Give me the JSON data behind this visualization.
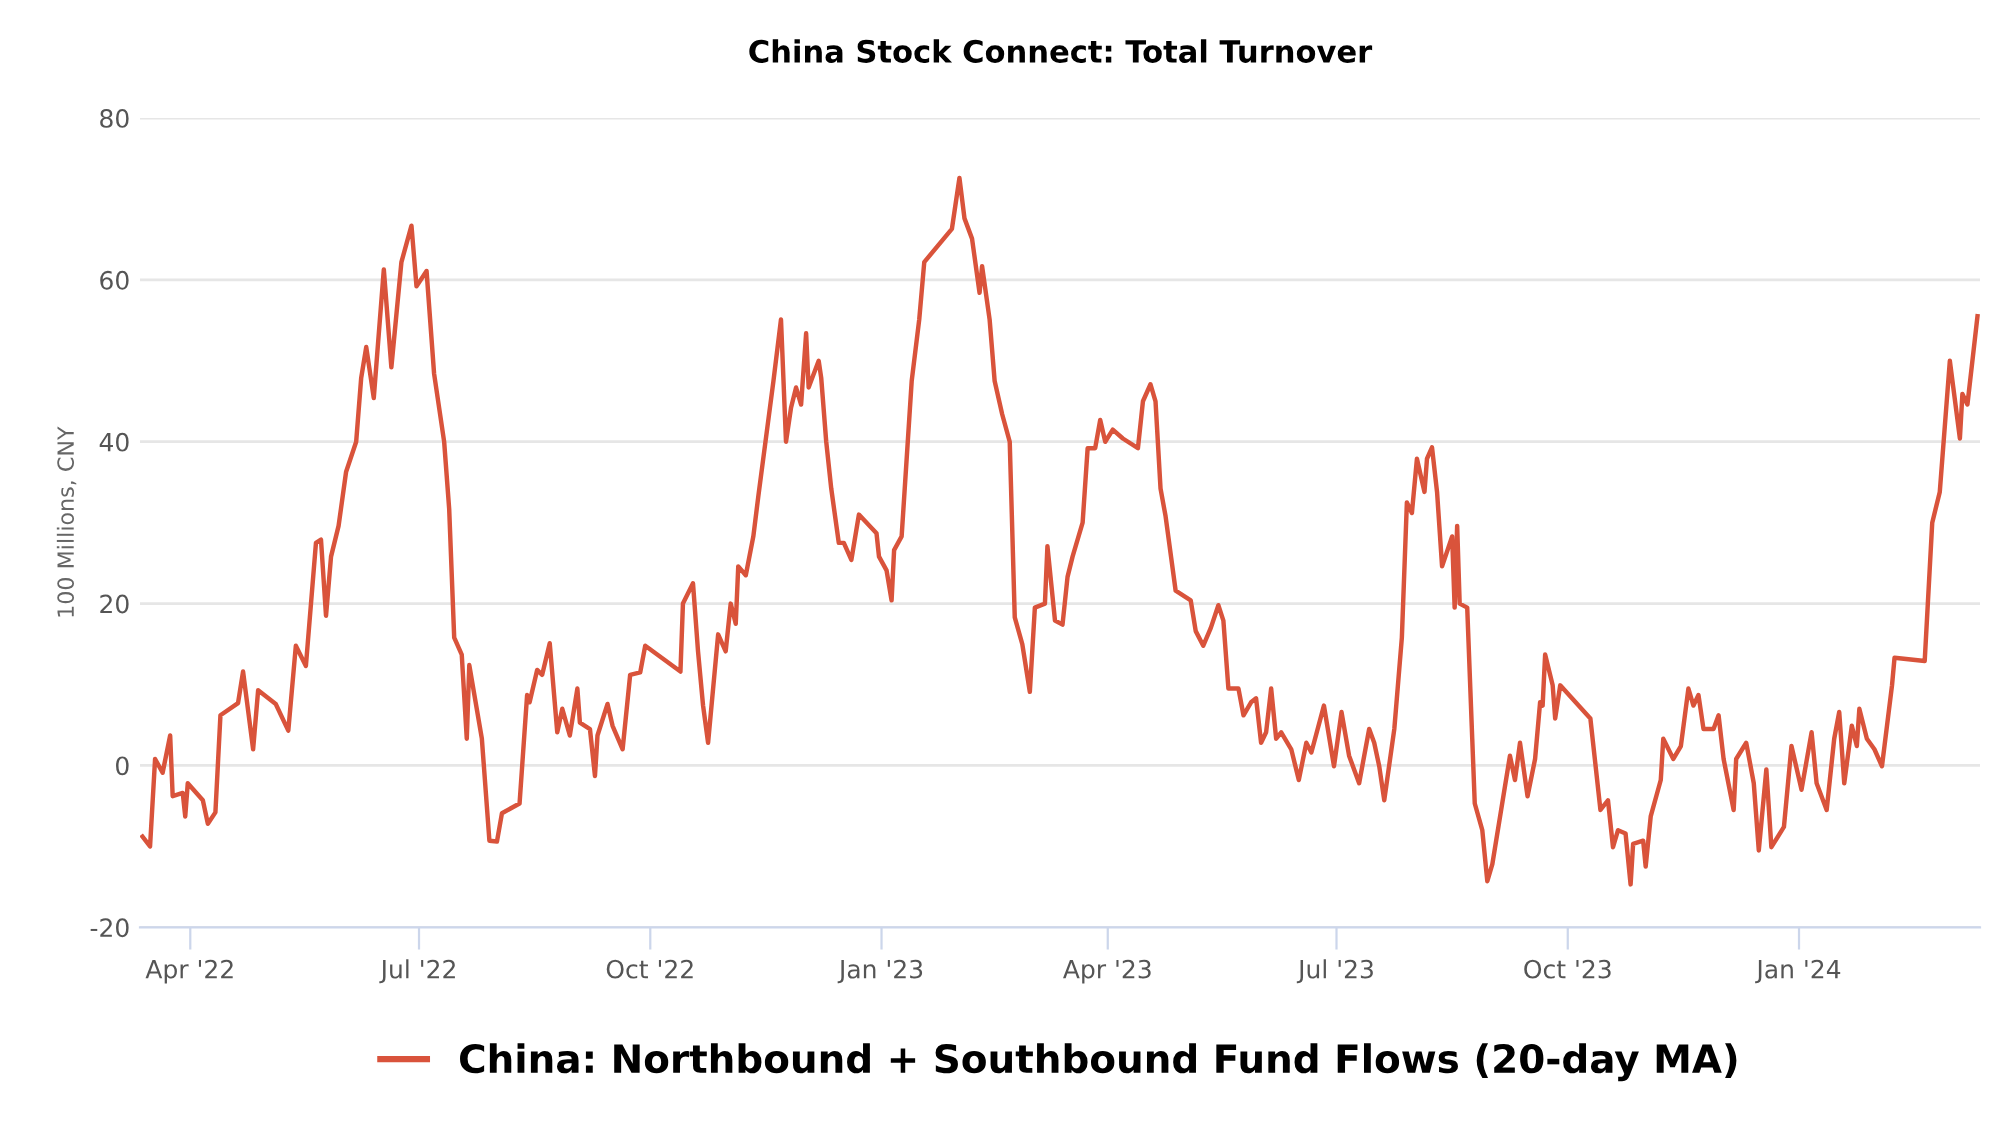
{
  "chart_data": {
    "type": "line",
    "title": "China Stock Connect: Total Turnover",
    "ylabel": "100 Millions, CNY",
    "xlim": [
      "2022-03-12",
      "2024-03-13"
    ],
    "ylim": [
      -20,
      80
    ],
    "yticks": [
      -20,
      0,
      20,
      40,
      60,
      80
    ],
    "xticks": [
      {
        "value": "2022-04-01",
        "label": "Apr '22"
      },
      {
        "value": "2022-07-01",
        "label": "Jul '22"
      },
      {
        "value": "2022-10-01",
        "label": "Oct '22"
      },
      {
        "value": "2023-01-01",
        "label": "Jan '23"
      },
      {
        "value": "2023-04-01",
        "label": "Apr '23"
      },
      {
        "value": "2023-07-01",
        "label": "Jul '23"
      },
      {
        "value": "2023-10-01",
        "label": "Oct '23"
      },
      {
        "value": "2024-01-01",
        "label": "Jan '24"
      }
    ],
    "grid": "y",
    "legend": "bottom",
    "marker": "none",
    "line_style": "solid",
    "series": [
      {
        "name": "China: Northbound + Southbound Fund Flows (20-day MA)",
        "color": "#d9533b",
        "x": [
          "2022-03-13",
          "2022-03-16",
          "2022-03-18",
          "2022-03-21",
          "2022-03-24",
          "2022-03-25",
          "2022-03-29",
          "2022-03-30",
          "2022-03-31",
          "2022-04-06",
          "2022-04-08",
          "2022-04-11",
          "2022-04-13",
          "2022-04-20",
          "2022-04-22",
          "2022-04-26",
          "2022-04-28",
          "2022-05-05",
          "2022-05-10",
          "2022-05-13",
          "2022-05-17",
          "2022-05-21",
          "2022-05-23",
          "2022-05-25",
          "2022-05-27",
          "2022-05-30",
          "2022-06-02",
          "2022-06-06",
          "2022-06-08",
          "2022-06-10",
          "2022-06-13",
          "2022-06-17",
          "2022-06-20",
          "2022-06-24",
          "2022-06-28",
          "2022-06-30",
          "2022-07-04",
          "2022-07-07",
          "2022-07-11",
          "2022-07-13",
          "2022-07-15",
          "2022-07-18",
          "2022-07-20",
          "2022-07-21",
          "2022-07-26",
          "2022-07-29",
          "2022-08-01",
          "2022-08-03",
          "2022-08-10",
          "2022-08-13",
          "2022-08-14",
          "2022-08-17",
          "2022-08-19",
          "2022-08-22",
          "2022-08-25",
          "2022-08-27",
          "2022-08-30",
          "2022-09-02",
          "2022-09-03",
          "2022-09-07",
          "2022-09-09",
          "2022-09-10",
          "2022-09-14",
          "2022-09-16",
          "2022-09-20",
          "2022-09-23",
          "2022-09-27",
          "2022-09-29",
          "2022-10-13",
          "2022-10-14",
          "2022-10-18",
          "2022-10-20",
          "2022-10-22",
          "2022-10-24",
          "2022-10-28",
          "2022-10-31",
          "2022-11-02",
          "2022-11-04",
          "2022-11-05",
          "2022-11-08",
          "2022-11-11",
          "2022-11-13",
          "2022-11-19",
          "2022-11-22",
          "2022-11-24",
          "2022-11-26",
          "2022-11-28",
          "2022-11-30",
          "2022-12-02",
          "2022-12-03",
          "2022-12-07",
          "2022-12-08",
          "2022-12-10",
          "2022-12-12",
          "2022-12-15",
          "2022-12-17",
          "2022-12-20",
          "2022-12-23",
          "2022-12-30",
          "2022-12-31",
          "2023-01-03",
          "2023-01-05",
          "2023-01-06",
          "2023-01-09",
          "2023-01-13",
          "2023-01-16",
          "2023-01-18",
          "2023-01-29",
          "2023-02-01",
          "2023-02-03",
          "2023-02-06",
          "2023-02-09",
          "2023-02-10",
          "2023-02-13",
          "2023-02-15",
          "2023-02-18",
          "2023-02-21",
          "2023-02-23",
          "2023-02-26",
          "2023-03-01",
          "2023-03-03",
          "2023-03-07",
          "2023-03-08",
          "2023-03-11",
          "2023-03-14",
          "2023-03-16",
          "2023-03-18",
          "2023-03-22",
          "2023-03-24",
          "2023-03-27",
          "2023-03-29",
          "2023-03-31",
          "2023-04-03",
          "2023-04-07",
          "2023-04-13",
          "2023-04-15",
          "2023-04-18",
          "2023-04-20",
          "2023-04-22",
          "2023-04-24",
          "2023-04-28",
          "2023-05-04",
          "2023-05-06",
          "2023-05-09",
          "2023-05-12",
          "2023-05-15",
          "2023-05-17",
          "2023-05-19",
          "2023-05-23",
          "2023-05-25",
          "2023-05-28",
          "2023-05-30",
          "2023-06-01",
          "2023-06-03",
          "2023-06-05",
          "2023-06-07",
          "2023-06-09",
          "2023-06-13",
          "2023-06-16",
          "2023-06-19",
          "2023-06-21",
          "2023-06-26",
          "2023-06-30",
          "2023-07-03",
          "2023-07-06",
          "2023-07-10",
          "2023-07-14",
          "2023-07-16",
          "2023-07-18",
          "2023-07-20",
          "2023-07-24",
          "2023-07-27",
          "2023-07-29",
          "2023-07-31",
          "2023-08-02",
          "2023-08-05",
          "2023-08-06",
          "2023-08-08",
          "2023-08-10",
          "2023-08-12",
          "2023-08-16",
          "2023-08-17",
          "2023-08-18",
          "2023-08-19",
          "2023-08-22",
          "2023-08-24",
          "2023-08-25",
          "2023-08-28",
          "2023-08-30",
          "2023-09-01",
          "2023-09-08",
          "2023-09-10",
          "2023-09-12",
          "2023-09-15",
          "2023-09-18",
          "2023-09-20",
          "2023-09-21",
          "2023-09-22",
          "2023-09-25",
          "2023-09-26",
          "2023-09-28",
          "2023-10-10",
          "2023-10-14",
          "2023-10-17",
          "2023-10-19",
          "2023-10-21",
          "2023-10-24",
          "2023-10-26",
          "2023-10-27",
          "2023-10-31",
          "2023-11-01",
          "2023-11-03",
          "2023-11-07",
          "2023-11-08",
          "2023-11-12",
          "2023-11-15",
          "2023-11-18",
          "2023-11-20",
          "2023-11-22",
          "2023-11-24",
          "2023-11-28",
          "2023-11-30",
          "2023-12-02",
          "2023-12-06",
          "2023-12-07",
          "2023-12-11",
          "2023-12-14",
          "2023-12-16",
          "2023-12-19",
          "2023-12-21",
          "2023-12-26",
          "2023-12-29",
          "2024-01-02",
          "2024-01-06",
          "2024-01-08",
          "2024-01-12",
          "2024-01-15",
          "2024-01-17",
          "2024-01-19",
          "2024-01-22",
          "2024-01-24",
          "2024-01-25",
          "2024-01-28",
          "2024-01-31",
          "2024-02-03",
          "2024-02-05",
          "2024-02-07",
          "2024-02-08",
          "2024-02-20",
          "2024-02-23",
          "2024-02-26",
          "2024-03-01",
          "2024-03-05",
          "2024-03-06",
          "2024-03-08",
          "2024-03-12"
        ],
        "values": [
          -8.8,
          -10,
          0.8,
          -0.9,
          3.7,
          -3.8,
          -3.4,
          -6.3,
          -2.2,
          -4.3,
          -7.2,
          -5.8,
          6.2,
          7.7,
          11.6,
          2.0,
          9.3,
          7.6,
          4.3,
          14.8,
          12.3,
          27.5,
          27.9,
          18.5,
          25.8,
          29.6,
          36.3,
          40.0,
          47.9,
          51.7,
          45.4,
          61.3,
          49.2,
          62.2,
          66.7,
          59.2,
          61.1,
          48.4,
          40.0,
          31.7,
          15.8,
          13.7,
          3.3,
          12.4,
          3.3,
          -9.3,
          -9.4,
          -5.9,
          -4.7,
          8.7,
          7.8,
          11.8,
          11.2,
          15.1,
          4.1,
          7.0,
          3.7,
          9.5,
          5.3,
          4.5,
          -1.3,
          3.7,
          7.6,
          4.9,
          2.0,
          11.2,
          11.5,
          14.8,
          11.6,
          20.0,
          22.5,
          14.1,
          7.4,
          2.8,
          16.2,
          14.1,
          20.0,
          17.5,
          24.6,
          23.5,
          28.3,
          33.3,
          47.5,
          55.1,
          40.0,
          44.2,
          46.7,
          44.6,
          53.4,
          46.7,
          50.0,
          47.9,
          40.0,
          34.2,
          27.5,
          27.5,
          25.4,
          31.0,
          28.7,
          25.8,
          24.1,
          20.4,
          26.6,
          28.3,
          47.5,
          55.1,
          62.2,
          66.3,
          72.6,
          67.6,
          65.1,
          58.4,
          61.7,
          55.1,
          47.5,
          43.4,
          40.0,
          18.3,
          15.0,
          9.1,
          19.5,
          20.0,
          27.1,
          17.9,
          17.4,
          23.3,
          25.8,
          30.0,
          39.2,
          39.2,
          42.7,
          40.0,
          41.5,
          40.4,
          39.2,
          45.0,
          47.1,
          45.0,
          34.2,
          30.8,
          21.6,
          20.4,
          16.6,
          14.8,
          17.0,
          19.8,
          17.9,
          9.5,
          9.5,
          6.2,
          7.8,
          8.3,
          2.8,
          4.1,
          9.5,
          3.3,
          4.1,
          2.0,
          -1.8,
          2.8,
          1.6,
          7.4,
          -0.1,
          6.6,
          1.2,
          -2.2,
          4.5,
          2.8,
          -0.1,
          -4.3,
          4.5,
          15.8,
          32.5,
          31.2,
          37.9,
          33.8,
          37.9,
          39.3,
          33.8,
          24.6,
          28.3,
          19.5,
          29.6,
          20.0,
          19.5,
          3.3,
          -4.7,
          -8.0,
          -14.3,
          -12.2,
          1.2,
          -1.8,
          2.8,
          -3.8,
          0.8,
          7.8,
          7.4,
          13.7,
          9.9,
          5.8,
          9.9,
          5.8,
          -5.5,
          -4.3,
          -10.1,
          -8.0,
          -8.4,
          -14.7,
          -9.7,
          -9.3,
          -12.5,
          -6.3,
          -1.8,
          3.3,
          0.8,
          2.4,
          9.5,
          7.4,
          8.7,
          4.5,
          4.5,
          6.2,
          0.8,
          -5.5,
          0.8,
          2.8,
          -2.2,
          -10.5,
          -0.5,
          -10.1,
          -7.6,
          2.4,
          -3.0,
          4.1,
          -2.2,
          -5.5,
          3.3,
          6.6,
          -2.2,
          4.9,
          2.4,
          7.0,
          3.3,
          2.0,
          -0.1,
          4.9,
          9.9,
          13.3,
          12.9,
          30.0,
          33.8,
          50.0,
          40.4,
          45.9,
          44.6,
          55.5
        ]
      }
    ]
  }
}
